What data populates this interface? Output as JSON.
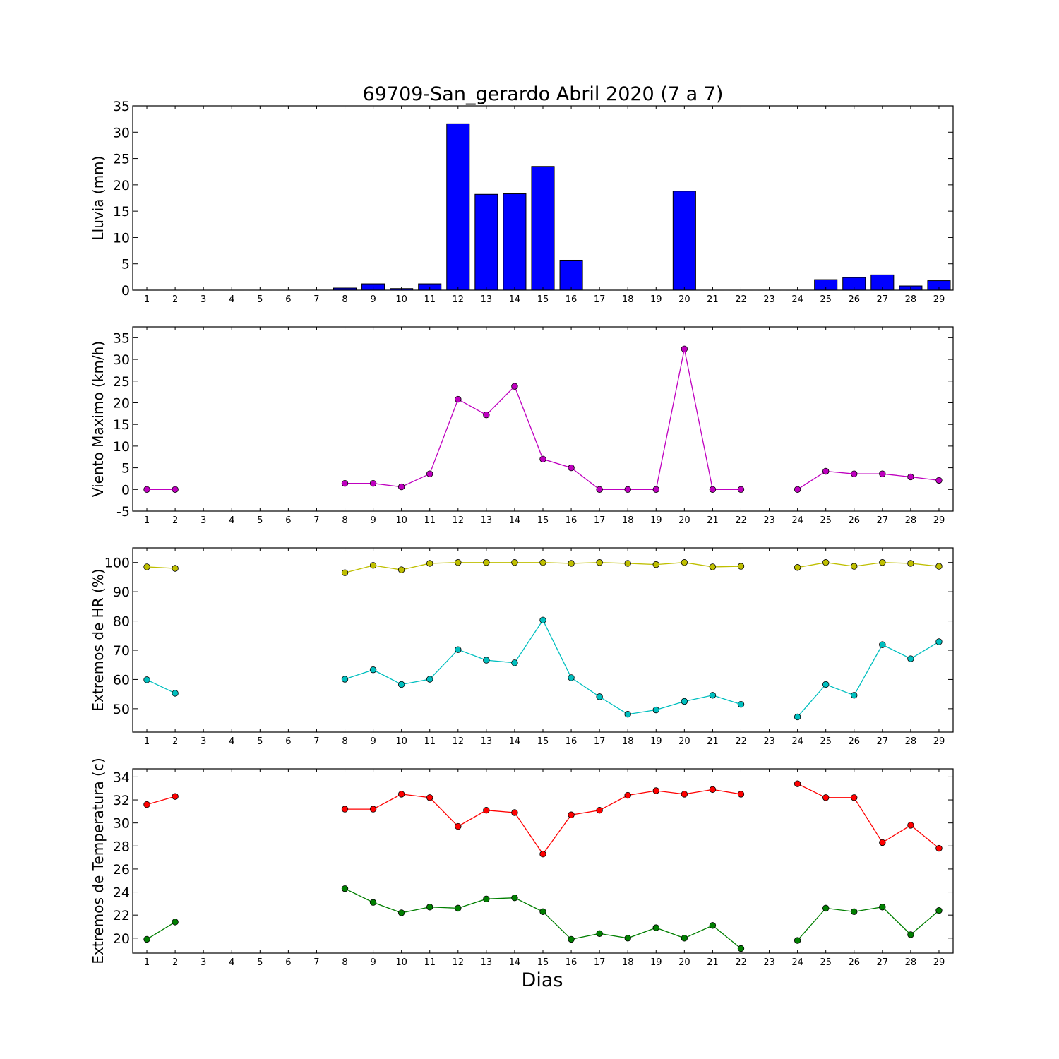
{
  "chart_data": {
    "title": "69709-San_gerardo Abril 2020  (7 a 7)",
    "xlabel": "Dias",
    "days": [
      1,
      2,
      3,
      4,
      5,
      6,
      7,
      8,
      9,
      10,
      11,
      12,
      13,
      14,
      15,
      16,
      17,
      18,
      19,
      20,
      21,
      22,
      23,
      24,
      25,
      26,
      27,
      28,
      29
    ],
    "panels": [
      {
        "type": "bar",
        "ylabel": "Lluvia (mm)",
        "ylim": [
          0,
          35
        ],
        "yticks": [
          0,
          5,
          10,
          15,
          20,
          25,
          30,
          35
        ],
        "series": [
          {
            "color": "#0000ff",
            "values": [
              0,
              0,
              0,
              0,
              0,
              0,
              0,
              0.4,
              1.2,
              0.3,
              1.2,
              31.6,
              18.2,
              18.3,
              23.5,
              5.7,
              0,
              0,
              0,
              18.8,
              0,
              0,
              0,
              0,
              2.0,
              2.4,
              2.9,
              0.8,
              1.8
            ]
          }
        ]
      },
      {
        "type": "line",
        "ylabel": "Viento Maximo (km/h)",
        "ylim": [
          -5,
          37.5
        ],
        "yticks": [
          -5,
          0,
          5,
          10,
          15,
          20,
          25,
          30,
          35
        ],
        "series": [
          {
            "color": "#bf00bf",
            "values": [
              0,
              0,
              null,
              null,
              null,
              null,
              null,
              1.4,
              1.4,
              0.6,
              3.6,
              20.8,
              17.2,
              23.8,
              7.0,
              5.0,
              0,
              0,
              0,
              32.4,
              0,
              0,
              null,
              0,
              4.2,
              3.6,
              3.6,
              2.9,
              2.1
            ]
          }
        ]
      },
      {
        "type": "line",
        "ylabel": "Extremos de HR (%)",
        "ylim": [
          42,
          105
        ],
        "yticks": [
          50,
          60,
          70,
          80,
          90,
          100
        ],
        "series": [
          {
            "color": "#bfbf00",
            "values": [
              98.5,
              98,
              null,
              null,
              null,
              null,
              null,
              96.5,
              99,
              97.5,
              99.7,
              100,
              100,
              100,
              100,
              99.7,
              100,
              99.7,
              99.3,
              100,
              98.5,
              98.7,
              null,
              98.3,
              100,
              98.7,
              100,
              99.7,
              98.7
            ]
          },
          {
            "color": "#00bfbf",
            "values": [
              59.9,
              55.3,
              null,
              null,
              null,
              null,
              null,
              60.1,
              63.3,
              58.3,
              60.1,
              70.2,
              66.6,
              65.7,
              80.3,
              60.6,
              54.1,
              48.1,
              49.6,
              52.5,
              54.6,
              51.5,
              null,
              47.2,
              58.3,
              54.6,
              71.9,
              67.1,
              72.9
            ]
          }
        ]
      },
      {
        "type": "line",
        "ylabel": "Extremos de Temperatura (c)",
        "ylim": [
          18.7,
          34.7
        ],
        "yticks": [
          20,
          22,
          24,
          26,
          28,
          30,
          32,
          34
        ],
        "series": [
          {
            "color": "#ff0000",
            "values": [
              31.6,
              32.3,
              null,
              null,
              null,
              null,
              null,
              31.2,
              31.2,
              32.5,
              32.2,
              29.7,
              31.1,
              30.9,
              27.3,
              30.7,
              31.1,
              32.4,
              32.8,
              32.5,
              32.9,
              32.5,
              null,
              33.4,
              32.2,
              32.2,
              28.3,
              29.8,
              27.8
            ]
          },
          {
            "color": "#007f00",
            "values": [
              19.9,
              21.4,
              null,
              null,
              null,
              null,
              null,
              24.3,
              23.1,
              22.2,
              22.7,
              22.6,
              23.4,
              23.5,
              22.3,
              19.9,
              20.4,
              20.0,
              20.9,
              20.0,
              21.1,
              19.1,
              null,
              19.8,
              22.6,
              22.3,
              22.7,
              20.3,
              22.4
            ]
          }
        ]
      }
    ]
  }
}
